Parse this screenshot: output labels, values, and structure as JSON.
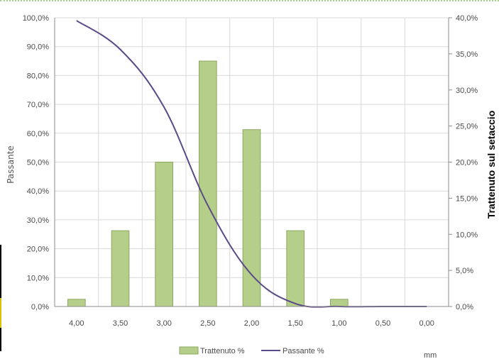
{
  "chart_data": {
    "type": "bar",
    "categories": [
      "4,00",
      "3,50",
      "3,00",
      "2,50",
      "2,00",
      "1,50",
      "1,00",
      "0,50",
      "0,00"
    ],
    "series": [
      {
        "name": "Trattenuto %",
        "type": "bar",
        "axis": "right",
        "values": [
          1.0,
          10.5,
          20.0,
          34.0,
          24.5,
          10.5,
          1.0,
          0.0,
          0.0
        ]
      },
      {
        "name": "Passante %",
        "type": "line",
        "axis": "left",
        "values": [
          99.0,
          89.0,
          69.0,
          35.0,
          11.0,
          1.0,
          0.0,
          0.0,
          0.0
        ]
      }
    ],
    "ylabel": "Passante",
    "y2label": "Trattenuto sul setaccio",
    "xunit": "mm",
    "ylim": [
      0,
      100
    ],
    "y2lim": [
      0,
      40
    ],
    "yticks": [
      "0,0%",
      "10,0%",
      "20,0%",
      "30,0%",
      "40,0%",
      "50,0%",
      "60,0%",
      "70,0%",
      "80,0%",
      "90,0%",
      "100,0%"
    ],
    "y2ticks": [
      "0,0%",
      "5,0%",
      "10,0%",
      "15,0%",
      "20,0%",
      "25,0%",
      "30,0%",
      "35,0%",
      "40,0%"
    ],
    "grid": true,
    "legend": "bottom-center"
  },
  "colors": {
    "bar_fill": "#b5cf8a",
    "bar_stroke": "#8aa860",
    "line": "#5b4a8a",
    "grid": "#d9d9d9",
    "axis": "#8c8c8c"
  }
}
